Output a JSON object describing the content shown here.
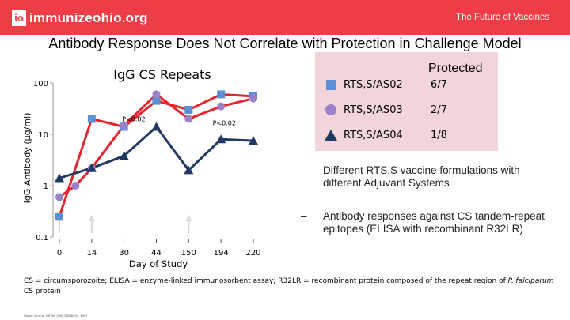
{
  "header": {
    "logo_mark": "io",
    "logo_text": "immunizeohio.org",
    "tagline": "The Future of Vaccines"
  },
  "slide": {
    "title": "Antibody Response Does Not Correlate with Protection in Challenge Model"
  },
  "legend": {
    "heading": "Protected",
    "items": [
      {
        "name": "RTS,S/AS02",
        "protected": "6/7",
        "symbol": "square-icon",
        "color": "#5b8fd6"
      },
      {
        "name": "RTS,S/AS03",
        "protected": "2/7",
        "symbol": "circle-icon",
        "color": "#9b82c8"
      },
      {
        "name": "RTS,S/AS04",
        "protected": "1/8",
        "symbol": "triangle-icon",
        "color": "#1f3864"
      }
    ]
  },
  "bullets": [
    {
      "dash": "–",
      "text": "Different RTS,S vaccine formulations with different Adjuvant Systems"
    },
    {
      "dash": "–",
      "text": "Antibody responses against CS tandem-repeat epitopes (ELISA with recombinant R32LR)"
    }
  ],
  "footnote": {
    "line1": "CS = circumsporozoite; ELISA = enzyme-linked immunosorbent assay; R32LR = recombinant protein composed of the repeat region of",
    "species_italic": "P. falciparum",
    "line2_rest": " CS protein"
  },
  "citation": "Stoute JA et al. NEJM. 1997;336:86-91, 1997",
  "chart_data": {
    "type": "line",
    "title": "IgG CS Repeats",
    "xlabel": "Day of Study",
    "ylabel": "IgG Antibody (µg/ml)",
    "yscale": "log",
    "ylim": [
      0.1,
      100
    ],
    "y_ticks": [
      "100",
      "10",
      "1",
      "0.1"
    ],
    "y_tick_values": [
      100,
      10,
      1,
      0.1
    ],
    "x_tick_labels": [
      "0",
      "14",
      "30",
      "44",
      "150",
      "194",
      "220"
    ],
    "x_tick_indices": [
      0,
      2,
      4,
      6,
      8,
      10,
      12
    ],
    "n_points": 13,
    "arrow_markers_at_index": [
      0,
      2,
      8
    ],
    "annotations": [
      {
        "text": "P<0.02",
        "x_index": 4.6,
        "y": 18
      },
      {
        "text": "P<0.02",
        "x_index": 10.2,
        "y": 15
      }
    ],
    "series": [
      {
        "name": "RTS,S/AS02",
        "color": "#e8232b",
        "marker": "square",
        "marker_color": "#5b8fd6",
        "x_index": [
          0,
          2,
          4,
          6,
          8,
          10,
          12
        ],
        "values": [
          0.25,
          20,
          14,
          45,
          30,
          60,
          55
        ]
      },
      {
        "name": "RTS,S/AS03",
        "color": "#e8232b",
        "marker": "circle",
        "marker_color": "#9b82c8",
        "x_index": [
          0,
          1,
          2,
          4,
          6,
          8,
          10,
          12
        ],
        "values": [
          0.6,
          1.0,
          2.2,
          15,
          60,
          20,
          35,
          50
        ]
      },
      {
        "name": "RTS,S/AS04",
        "color": "#1f3864",
        "marker": "triangle",
        "marker_color": "#1f3864",
        "x_index": [
          0,
          2,
          4,
          6,
          8,
          10,
          12
        ],
        "values": [
          1.4,
          2.2,
          3.8,
          14,
          2.0,
          8,
          7.5
        ]
      }
    ]
  }
}
